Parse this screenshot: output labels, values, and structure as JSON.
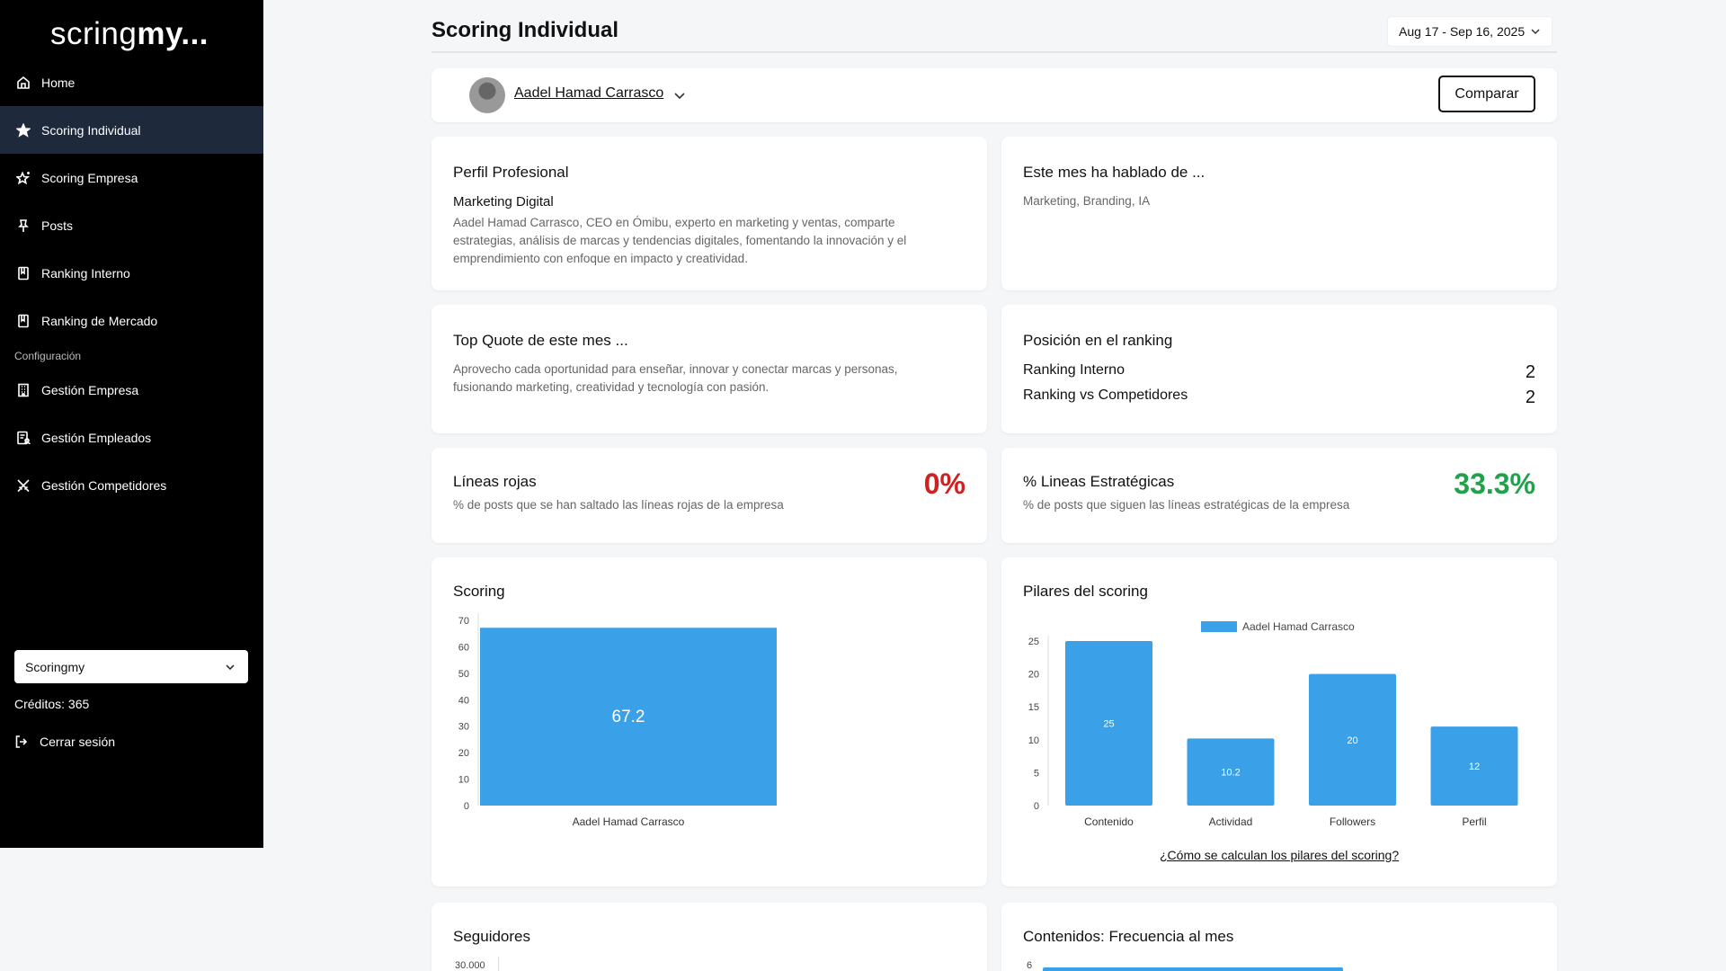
{
  "sidebar": {
    "logo_light": "scoringmy",
    "logo_prefix": "sc",
    "logo_mid": "ring",
    "logo_bold": "my...",
    "items": [
      {
        "label": "Home",
        "icon": "home-icon"
      },
      {
        "label": "Scoring Individual",
        "icon": "star-filled-icon",
        "active": true
      },
      {
        "label": "Scoring Empresa",
        "icon": "star-sparkle-icon"
      },
      {
        "label": "Posts",
        "icon": "pin-icon"
      },
      {
        "label": "Ranking Interno",
        "icon": "bookmark-icon"
      },
      {
        "label": "Ranking de Mercado",
        "icon": "bookmark-icon"
      }
    ],
    "section_label": "Configuración",
    "config_items": [
      {
        "label": "Gestión Empresa",
        "icon": "building-icon"
      },
      {
        "label": "Gestión Empleados",
        "icon": "employees-icon"
      },
      {
        "label": "Gestión Competidores",
        "icon": "swords-icon"
      }
    ],
    "company_select": "Scoringmy",
    "credits": "Créditos: 365",
    "logout": "Cerrar sesión"
  },
  "header": {
    "title": "Scoring Individual",
    "date_range": "Aug 17 - Sep 16, 2025"
  },
  "user": {
    "name": "Aadel Hamad Carrasco",
    "compare_label": "Comparar"
  },
  "profile": {
    "title": "Perfil Profesional",
    "subtitle": "Marketing Digital",
    "description": "Aadel Hamad Carrasco, CEO en Ómibu, experto en marketing y ventas, comparte estrategias, análisis de marcas y tendencias digitales, fomentando la innovación y el emprendimiento con enfoque en impacto y creatividad."
  },
  "topics": {
    "title": "Este mes ha hablado de ...",
    "text": "Marketing, Branding, IA"
  },
  "quote": {
    "title": "Top Quote de este mes ...",
    "text": "Aprovecho cada oportunidad para enseñar, innovar y conectar marcas y personas, fusionando marketing, creatividad y tecnología con pasión."
  },
  "ranking": {
    "title": "Posición en el ranking",
    "rows": [
      {
        "label": "Ranking Interno",
        "value": "2"
      },
      {
        "label": "Ranking vs Competidores",
        "value": "2"
      }
    ]
  },
  "red_lines": {
    "title": "Líneas rojas",
    "sub": "% de posts que se han saltado las líneas rojas de la empresa",
    "value": "0%",
    "color": "#d21f1f"
  },
  "strategic": {
    "title": "% Lineas Estratégicas",
    "sub": "% de posts que siguen las líneas estratégicas de la empresa",
    "value": "33.3%",
    "color": "#1fa24a"
  },
  "scoring_chart": {
    "title": "Scoring"
  },
  "pillars_chart": {
    "title": "Pilares del scoring",
    "link": "¿Cómo se calculan los pilares del scoring?"
  },
  "followers": {
    "title": "Seguidores",
    "first_tick": "30.000"
  },
  "frequency": {
    "title": "Contenidos: Frecuencia al mes",
    "first_tick": "6"
  },
  "chart_data": [
    {
      "type": "bar",
      "title": "Scoring",
      "categories": [
        "Aadel Hamad Carrasco"
      ],
      "values": [
        67.2
      ],
      "ylim": [
        0,
        70
      ],
      "yticks": [
        0,
        10,
        20,
        30,
        40,
        50,
        60,
        70
      ],
      "color": "#3aa0e8",
      "grid": false
    },
    {
      "type": "bar",
      "title": "Pilares del scoring",
      "categories": [
        "Contenido",
        "Actividad",
        "Followers",
        "Perfil"
      ],
      "series": [
        {
          "name": "Aadel Hamad Carrasco",
          "values": [
            25,
            10.2,
            20,
            12
          ]
        }
      ],
      "ylim": [
        0,
        25
      ],
      "yticks": [
        0,
        5,
        10,
        15,
        20,
        25
      ],
      "color": "#3aa0e8",
      "legend": "top-center",
      "grid": false
    }
  ]
}
